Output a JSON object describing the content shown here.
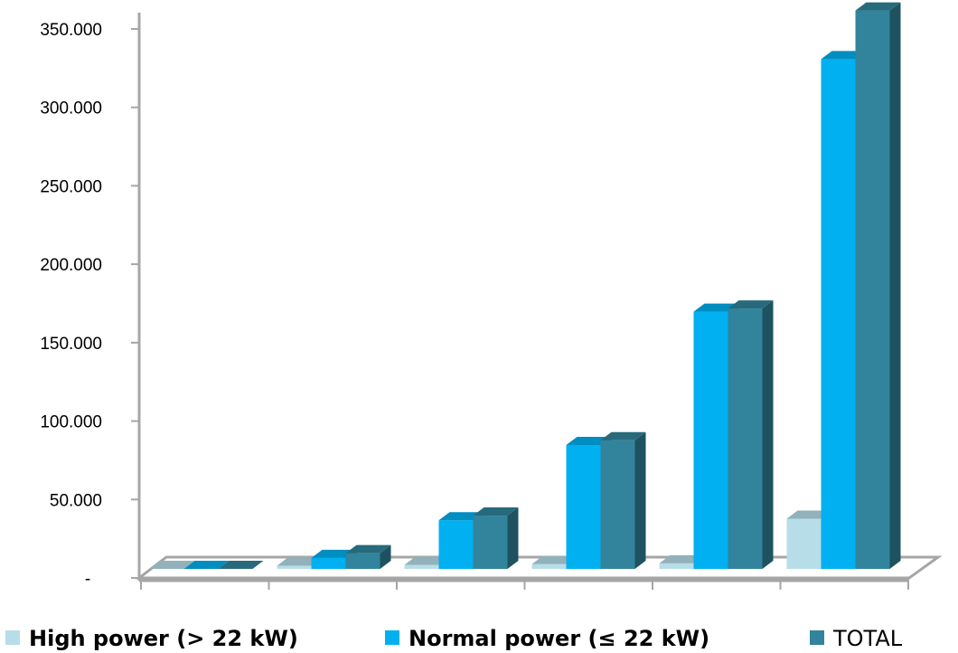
{
  "chart_data": {
    "type": "bar",
    "title": "",
    "xlabel": "",
    "ylabel": "",
    "ylim": [
      0,
      350000
    ],
    "yticks": [
      0,
      50000,
      100000,
      150000,
      200000,
      250000,
      300000,
      350000
    ],
    "ytick_labels": [
      "-",
      "50.000",
      "100.000",
      "150.000",
      "200.000",
      "250.000",
      "300.000",
      "350.000"
    ],
    "categories": [
      "",
      "",
      "",
      "",
      "",
      ""
    ],
    "grid": false,
    "legend_position": "bottom",
    "series": [
      {
        "name": "High power (> 22 kW)",
        "color": "#b7dde8",
        "values": [
          0,
          2000,
          2500,
          3000,
          3500,
          32000
        ]
      },
      {
        "name": "Normal power (≤ 22 kW)",
        "color": "#00b0f0",
        "values": [
          0,
          7000,
          31000,
          79000,
          164000,
          325000
        ]
      },
      {
        "name": "TOTAL",
        "color": "#31849b",
        "values": [
          0,
          10000,
          34000,
          82000,
          166000,
          356000
        ]
      }
    ]
  }
}
